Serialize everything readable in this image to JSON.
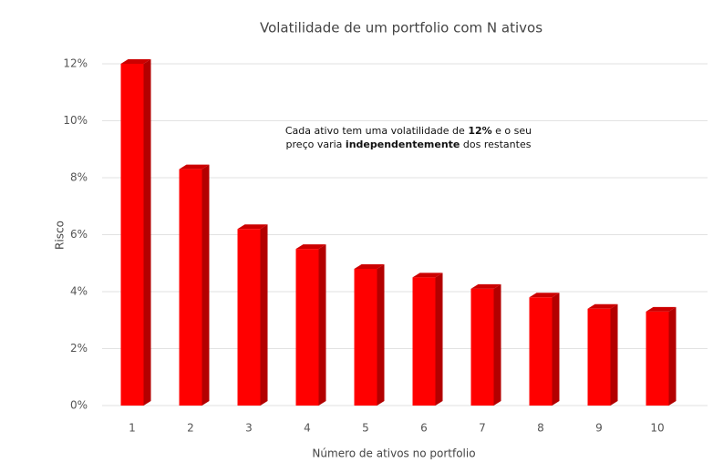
{
  "chart_data": {
    "type": "bar",
    "title": "Volatilidade de um portfolio com N ativos",
    "annotation": {
      "line1": [
        "Cada ativo tem uma volatilidade de ",
        "12%",
        " e o seu"
      ],
      "line2": [
        "preço varia ",
        "independentemente",
        " dos restantes"
      ]
    },
    "x_label": "Número de ativos no portfolio",
    "y_label": "Risco",
    "categories": [
      "1",
      "2",
      "3",
      "4",
      "5",
      "6",
      "7",
      "8",
      "9",
      "10"
    ],
    "values": [
      12,
      8.3,
      6.2,
      5.5,
      4.8,
      4.5,
      4.1,
      3.8,
      3.4,
      3.3
    ],
    "color": "#ff0000",
    "ylim": [
      0,
      12
    ],
    "yticks": [
      {
        "value": 0,
        "label": "0%"
      },
      {
        "value": 2,
        "label": "2%"
      },
      {
        "value": 4,
        "label": "4%"
      },
      {
        "value": 6,
        "label": "6%"
      },
      {
        "value": 8,
        "label": "8%"
      },
      {
        "value": 10,
        "label": "10%"
      },
      {
        "value": 12,
        "label": "12%"
      }
    ],
    "grid": true
  }
}
